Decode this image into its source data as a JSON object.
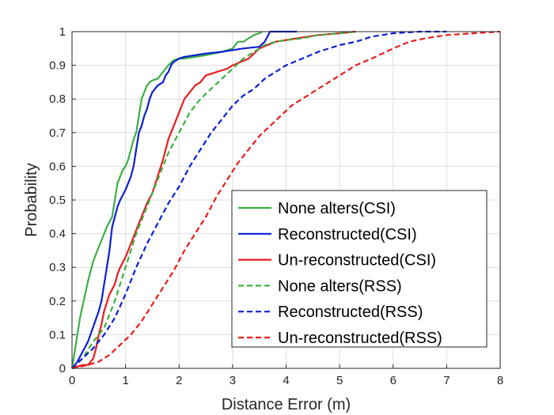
{
  "chart_data": {
    "type": "line",
    "xlabel": "Distance Error (m)",
    "ylabel": "Probability",
    "xlim": [
      0,
      8
    ],
    "ylim": [
      0,
      1
    ],
    "xticks": [
      "0",
      "1",
      "2",
      "3",
      "4",
      "5",
      "6",
      "7",
      "8"
    ],
    "yticks": [
      "0",
      "0.1",
      "0.2",
      "0.3",
      "0.4",
      "0.5",
      "0.6",
      "0.7",
      "0.8",
      "0.9",
      "1"
    ],
    "grid": true,
    "legend_position": "lower-right",
    "series": [
      {
        "name": "None alters(CSI)",
        "color": "#3cb043",
        "style": "solid",
        "x": [
          0,
          0.05,
          0.15,
          0.3,
          0.4,
          0.5,
          0.6,
          0.65,
          0.75,
          0.8,
          0.85,
          0.9,
          0.95,
          1.0,
          1.05,
          1.1,
          1.15,
          1.2,
          1.25,
          1.3,
          1.35,
          1.4,
          1.45,
          1.5,
          1.6,
          1.7,
          1.8,
          1.9,
          2.0,
          2.1,
          2.5,
          2.8,
          3.0,
          3.1,
          3.2,
          3.3,
          3.4,
          3.5,
          3.55
        ],
        "y": [
          0,
          0.05,
          0.15,
          0.26,
          0.32,
          0.36,
          0.4,
          0.42,
          0.45,
          0.5,
          0.55,
          0.57,
          0.59,
          0.6,
          0.62,
          0.65,
          0.68,
          0.7,
          0.75,
          0.8,
          0.82,
          0.84,
          0.85,
          0.855,
          0.86,
          0.88,
          0.9,
          0.915,
          0.92,
          0.92,
          0.93,
          0.94,
          0.95,
          0.97,
          0.97,
          0.98,
          0.99,
          0.995,
          1.0
        ]
      },
      {
        "name": "Reconstructed(CSI)",
        "color": "#0a1fd6",
        "style": "solid",
        "x": [
          0,
          0.1,
          0.3,
          0.5,
          0.55,
          0.6,
          0.65,
          0.7,
          0.75,
          0.8,
          0.85,
          0.9,
          1.0,
          1.05,
          1.1,
          1.15,
          1.2,
          1.25,
          1.3,
          1.35,
          1.4,
          1.45,
          1.5,
          1.55,
          1.6,
          1.7,
          1.75,
          1.8,
          1.85,
          1.9,
          2.0,
          2.1,
          2.5,
          2.8,
          3.0,
          3.2,
          3.5,
          3.6,
          3.7,
          4.2
        ],
        "y": [
          0,
          0.02,
          0.08,
          0.17,
          0.2,
          0.25,
          0.3,
          0.35,
          0.42,
          0.45,
          0.48,
          0.5,
          0.53,
          0.55,
          0.57,
          0.6,
          0.65,
          0.7,
          0.72,
          0.75,
          0.77,
          0.8,
          0.82,
          0.83,
          0.84,
          0.85,
          0.87,
          0.88,
          0.9,
          0.91,
          0.92,
          0.925,
          0.935,
          0.94,
          0.945,
          0.95,
          0.955,
          0.97,
          1.0,
          1.0
        ]
      },
      {
        "name": "Un-reconstructed(CSI)",
        "color": "#e81c1c",
        "style": "solid",
        "x": [
          0,
          0.2,
          0.3,
          0.4,
          0.45,
          0.5,
          0.55,
          0.6,
          0.7,
          0.8,
          0.85,
          0.9,
          1.0,
          1.1,
          1.2,
          1.3,
          1.4,
          1.5,
          1.6,
          1.7,
          1.8,
          1.9,
          2.0,
          2.1,
          2.2,
          2.3,
          2.4,
          2.5,
          2.6,
          2.7,
          2.8,
          2.9,
          3.0,
          3.3,
          3.5,
          3.8,
          4.2,
          4.6,
          5.0,
          5.3
        ],
        "y": [
          0,
          0.01,
          0.01,
          0.03,
          0.06,
          0.1,
          0.13,
          0.17,
          0.22,
          0.25,
          0.28,
          0.3,
          0.33,
          0.37,
          0.41,
          0.45,
          0.49,
          0.52,
          0.57,
          0.62,
          0.68,
          0.72,
          0.76,
          0.8,
          0.82,
          0.84,
          0.85,
          0.87,
          0.875,
          0.88,
          0.885,
          0.89,
          0.9,
          0.92,
          0.95,
          0.97,
          0.98,
          0.99,
          0.995,
          1.0
        ]
      },
      {
        "name": "None alters(RSS)",
        "color": "#3cb043",
        "style": "dashed",
        "x": [
          0,
          0.2,
          0.4,
          0.6,
          0.8,
          1.0,
          1.2,
          1.4,
          1.6,
          1.8,
          2.0,
          2.2,
          2.4,
          2.6,
          2.8,
          3.0,
          3.2,
          3.4,
          3.6,
          3.8,
          4.0,
          4.3,
          4.6,
          5.0,
          5.3
        ],
        "y": [
          0,
          0.03,
          0.08,
          0.12,
          0.2,
          0.3,
          0.4,
          0.48,
          0.56,
          0.64,
          0.7,
          0.76,
          0.8,
          0.83,
          0.86,
          0.89,
          0.92,
          0.94,
          0.96,
          0.97,
          0.975,
          0.98,
          0.99,
          0.995,
          1.0
        ]
      },
      {
        "name": "Reconstructed(RSS)",
        "color": "#0a1fd6",
        "style": "dashed",
        "x": [
          0,
          0.2,
          0.4,
          0.6,
          0.8,
          1.0,
          1.2,
          1.4,
          1.6,
          1.8,
          2.0,
          2.2,
          2.4,
          2.6,
          2.8,
          3.0,
          3.2,
          3.4,
          3.6,
          3.8,
          4.0,
          4.3,
          4.6,
          5.0,
          5.3,
          5.6,
          6.0,
          6.5,
          7.0
        ],
        "y": [
          0,
          0.03,
          0.06,
          0.1,
          0.15,
          0.22,
          0.3,
          0.37,
          0.43,
          0.49,
          0.54,
          0.6,
          0.65,
          0.7,
          0.74,
          0.78,
          0.81,
          0.83,
          0.86,
          0.88,
          0.9,
          0.92,
          0.94,
          0.96,
          0.97,
          0.985,
          0.995,
          1.0,
          1.0
        ]
      },
      {
        "name": "Un-reconstructed(RSS)",
        "color": "#e81c1c",
        "style": "dashed",
        "x": [
          0,
          0.3,
          0.5,
          0.7,
          0.9,
          1.1,
          1.3,
          1.5,
          1.7,
          1.9,
          2.1,
          2.3,
          2.5,
          2.7,
          2.9,
          3.1,
          3.3,
          3.5,
          3.7,
          3.9,
          4.1,
          4.4,
          4.7,
          5.0,
          5.3,
          5.6,
          6.0,
          6.3,
          6.6,
          7.0,
          7.5,
          8.0
        ],
        "y": [
          0,
          0.01,
          0.02,
          0.04,
          0.07,
          0.1,
          0.14,
          0.19,
          0.24,
          0.29,
          0.35,
          0.4,
          0.45,
          0.51,
          0.56,
          0.61,
          0.65,
          0.69,
          0.72,
          0.75,
          0.78,
          0.81,
          0.84,
          0.87,
          0.9,
          0.92,
          0.95,
          0.97,
          0.98,
          0.99,
          0.995,
          1.0
        ]
      }
    ]
  }
}
